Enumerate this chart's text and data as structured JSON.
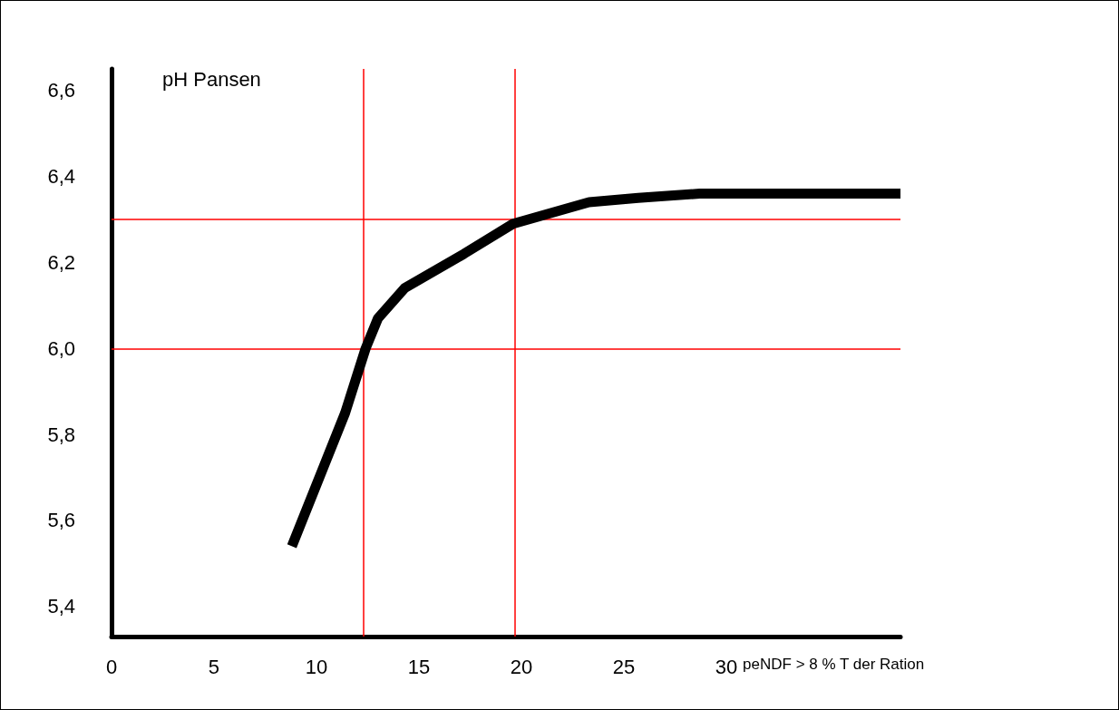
{
  "chart_data": {
    "type": "line",
    "xlabel": "peNDF > 8 % T der Ration",
    "ylabel": "pH Pansen",
    "x": [
      8.8,
      11.4,
      11.8,
      12.4,
      13.0,
      14.3,
      17.2,
      19.6,
      23.3,
      25.7,
      28.7,
      38.5
    ],
    "series": [
      {
        "color": "#000000",
        "values": [
          5.54,
          5.85,
          5.91,
          6.0,
          6.07,
          6.14,
          6.22,
          6.29,
          6.34,
          6.35,
          6.36,
          6.36
        ]
      }
    ],
    "xlim": [
      0,
      38.5
    ],
    "xticks": [
      0,
      5,
      10,
      15,
      20,
      25,
      30
    ],
    "ylim": [
      5.33,
      6.65
    ],
    "yticks": [
      {
        "value": 5.4,
        "label": "5,4"
      },
      {
        "value": 5.6,
        "label": "5,6"
      },
      {
        "value": 5.8,
        "label": "5,8"
      },
      {
        "value": 6.0,
        "label": "6,0"
      },
      {
        "value": 6.2,
        "label": "6,2"
      },
      {
        "value": 6.4,
        "label": "6,4"
      },
      {
        "value": 6.6,
        "label": "6,6"
      }
    ],
    "ref_lines": [
      {
        "axis": "x",
        "value": 12.3,
        "color": "#ff0000"
      },
      {
        "axis": "x",
        "value": 19.7,
        "color": "#ff0000"
      },
      {
        "axis": "y",
        "value": 6.0,
        "color": "#ff0000"
      },
      {
        "axis": "y",
        "value": 6.3,
        "color": "#ff0000"
      }
    ],
    "grid": false,
    "marker": "none",
    "line_style": "solid"
  }
}
